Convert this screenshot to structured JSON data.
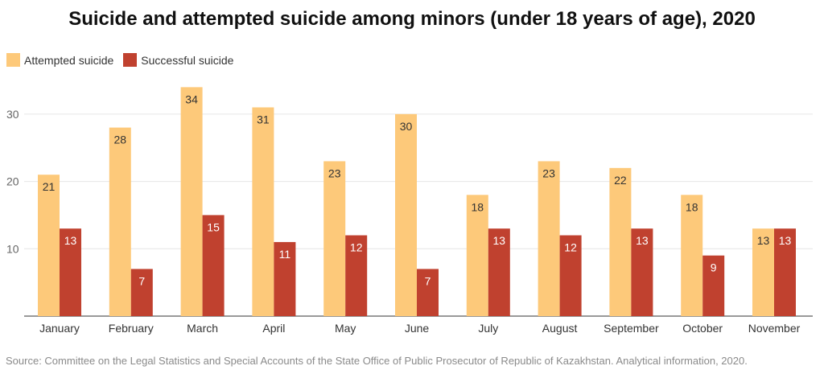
{
  "chart_data": {
    "type": "bar",
    "title": "Suicide and attempted suicide among minors (under 18 years of age), 2020",
    "categories": [
      "January",
      "February",
      "March",
      "April",
      "May",
      "June",
      "July",
      "August",
      "September",
      "October",
      "November"
    ],
    "series": [
      {
        "name": "Attempted suicide",
        "color": "#fdc97a",
        "values": [
          21,
          28,
          34,
          31,
          23,
          30,
          18,
          23,
          22,
          18,
          13
        ]
      },
      {
        "name": "Successful suicide",
        "color": "#c0412f",
        "values": [
          13,
          7,
          15,
          11,
          12,
          7,
          13,
          12,
          13,
          9,
          13
        ]
      }
    ],
    "yticks": [
      10,
      20,
      30
    ],
    "ylim": [
      0,
      35
    ],
    "xlabel": "",
    "ylabel": "",
    "grid": true,
    "legend_position": "top-left",
    "data_labels": true
  },
  "source": "Source: Committee on the Legal Statistics and Special Accounts of the State Office of Public Prosecutor of Republic of Kazakhstan. Analytical information, 2020."
}
